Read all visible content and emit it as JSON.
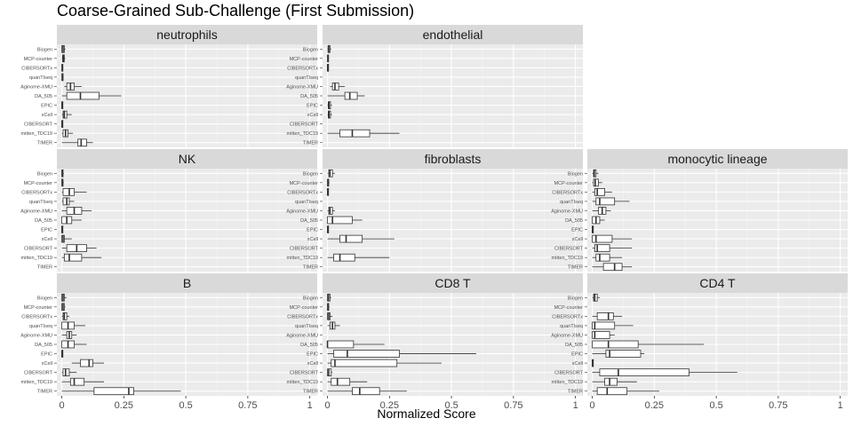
{
  "chart_data": {
    "type": "boxplot",
    "title": "Coarse-Grained Sub-Challenge (First Submission)",
    "xlabel": "Normalized Score",
    "ylabel": "",
    "xlim": [
      -0.02,
      1.03
    ],
    "x_ticks": [
      "0",
      "0.25",
      "0.5",
      "0.75",
      "1"
    ],
    "x_tick_values": [
      0,
      0.25,
      0.5,
      0.75,
      1
    ],
    "methods": [
      "Biogen",
      "MCP-counter",
      "CIBERSORTx",
      "quanTIseq",
      "Aginome-XMU",
      "DA_505",
      "EPIC",
      "xCell",
      "CIBERSORT",
      "mitten_TDC19",
      "TIMER"
    ],
    "colors": {
      "panel_bg": "#ebebeb",
      "grid_major": "#ffffff",
      "grid_minor": "#f3f3f3",
      "strip_bg": "#d9d9d9",
      "box_fill": "#ffffff",
      "box_line": "#333333"
    },
    "panels": [
      {
        "name": "neutrophils",
        "row": 0,
        "col": 0,
        "boxes": [
          [
            0.0,
            0.0,
            0.005,
            0.01,
            0.015
          ],
          [
            0.0,
            0.003,
            0.006,
            0.01,
            0.014
          ],
          [
            0.0,
            0.0,
            0.002,
            0.004,
            0.006
          ],
          [
            0.0,
            0.0,
            0.003,
            0.005,
            0.007
          ],
          [
            0.01,
            0.02,
            0.035,
            0.05,
            0.08
          ],
          [
            0.0,
            0.02,
            0.075,
            0.15,
            0.24
          ],
          [
            0.0,
            0.0,
            0.001,
            0.002,
            0.003
          ],
          [
            0.0,
            0.005,
            0.01,
            0.02,
            0.04
          ],
          [
            0.0,
            0.0,
            0.001,
            0.002,
            0.003
          ],
          [
            0.0,
            0.005,
            0.015,
            0.025,
            0.045
          ],
          [
            0.0,
            0.065,
            0.078,
            0.1,
            0.125
          ]
        ]
      },
      {
        "name": "endothelial",
        "row": 0,
        "col": 1,
        "boxes": [
          [
            0.0,
            0.002,
            0.005,
            0.01,
            0.015
          ],
          [
            0.0,
            0.0,
            0.002,
            0.004,
            0.006
          ],
          [
            0.0,
            0.0,
            0.001,
            0.002,
            0.003
          ],
          null,
          [
            0.01,
            0.02,
            0.03,
            0.045,
            0.07
          ],
          [
            0.0,
            0.07,
            0.09,
            0.12,
            0.15
          ],
          [
            0.0,
            0.003,
            0.006,
            0.012,
            0.018
          ],
          [
            0.0,
            0.003,
            0.006,
            0.012,
            0.018
          ],
          null,
          [
            0.0,
            0.05,
            0.1,
            0.17,
            0.29
          ],
          null
        ]
      },
      {
        "name": "NK",
        "row": 1,
        "col": 0,
        "boxes": [
          [
            0.0,
            0.0,
            0.002,
            0.005,
            0.008
          ],
          [
            0.0,
            0.0,
            0.002,
            0.005,
            0.008
          ],
          [
            0.0,
            0.005,
            0.03,
            0.05,
            0.1
          ],
          [
            0.0,
            0.005,
            0.02,
            0.03,
            0.05
          ],
          [
            0.0,
            0.02,
            0.05,
            0.08,
            0.12
          ],
          [
            0.0,
            0.0,
            0.02,
            0.04,
            0.08
          ],
          [
            0.0,
            0.0,
            0.001,
            0.002,
            0.003
          ],
          [
            0.0,
            0.0,
            0.005,
            0.01,
            0.04
          ],
          [
            0.0,
            0.02,
            0.06,
            0.1,
            0.14
          ],
          [
            0.0,
            0.01,
            0.03,
            0.08,
            0.16
          ],
          null
        ]
      },
      {
        "name": "fibroblasts",
        "row": 1,
        "col": 1,
        "boxes": [
          [
            0.0,
            0.005,
            0.01,
            0.02,
            0.03
          ],
          [
            0.0,
            0.0,
            0.002,
            0.005,
            0.008
          ],
          [
            0.0,
            0.0,
            0.001,
            0.002,
            0.003
          ],
          null,
          [
            0.0,
            0.005,
            0.01,
            0.02,
            0.03
          ],
          [
            0.0,
            0.0,
            0.02,
            0.1,
            0.14
          ],
          [
            0.0,
            0.0,
            0.001,
            0.002,
            0.003
          ],
          [
            0.0,
            0.05,
            0.075,
            0.14,
            0.27
          ],
          null,
          [
            0.0,
            0.025,
            0.05,
            0.11,
            0.25
          ],
          null
        ]
      },
      {
        "name": "monocytic lineage",
        "row": 1,
        "col": 2,
        "boxes": [
          [
            0.0,
            0.005,
            0.008,
            0.015,
            0.025
          ],
          [
            0.0,
            0.005,
            0.012,
            0.025,
            0.04
          ],
          [
            0.0,
            0.01,
            0.02,
            0.05,
            0.08
          ],
          [
            0.0,
            0.015,
            0.03,
            0.09,
            0.15
          ],
          [
            0.0,
            0.025,
            0.04,
            0.055,
            0.075
          ],
          [
            0.0,
            0.0,
            0.015,
            0.03,
            0.05
          ],
          [
            0.0,
            0.0,
            0.001,
            0.002,
            0.003
          ],
          [
            0.0,
            0.0,
            0.015,
            0.08,
            0.16
          ],
          [
            0.0,
            0.01,
            0.02,
            0.07,
            0.16
          ],
          [
            0.0,
            0.015,
            0.03,
            0.07,
            0.12
          ],
          [
            0.0,
            0.045,
            0.09,
            0.12,
            0.16
          ]
        ]
      },
      {
        "name": "B",
        "row": 2,
        "col": 0,
        "boxes": [
          [
            0.0,
            0.0,
            0.005,
            0.01,
            0.02
          ],
          [
            0.0,
            0.0,
            0.005,
            0.01,
            0.014
          ],
          [
            0.0,
            0.005,
            0.01,
            0.02,
            0.03
          ],
          [
            0.0,
            0.0,
            0.025,
            0.05,
            0.095
          ],
          [
            0.0,
            0.02,
            0.03,
            0.04,
            0.06
          ],
          [
            0.0,
            0.0,
            0.025,
            0.05,
            0.1
          ],
          [
            0.0,
            0.0,
            0.001,
            0.002,
            0.003
          ],
          [
            0.04,
            0.075,
            0.11,
            0.125,
            0.17
          ],
          [
            0.0,
            0.005,
            0.015,
            0.03,
            0.06
          ],
          [
            0.0,
            0.035,
            0.05,
            0.09,
            0.17
          ],
          [
            0.0,
            0.13,
            0.27,
            0.29,
            0.48
          ]
        ]
      },
      {
        "name": "CD8 T",
        "row": 2,
        "col": 1,
        "boxes": [
          [
            0.0,
            0.0,
            0.004,
            0.01,
            0.015
          ],
          [
            0.0,
            0.0,
            0.002,
            0.005,
            0.008
          ],
          [
            0.0,
            0.0,
            0.005,
            0.01,
            0.02
          ],
          [
            0.0,
            0.01,
            0.02,
            0.03,
            0.05
          ],
          null,
          [
            0.0,
            0.0,
            0.0,
            0.105,
            0.23
          ],
          [
            0.0,
            0.025,
            0.08,
            0.29,
            0.6
          ],
          [
            0.0,
            0.015,
            0.03,
            0.28,
            0.46
          ],
          [
            0.0,
            0.0,
            0.005,
            0.015,
            0.02
          ],
          [
            0.0,
            0.015,
            0.04,
            0.09,
            0.16
          ],
          [
            0.0,
            0.1,
            0.13,
            0.21,
            0.32
          ]
        ]
      },
      {
        "name": "CD4 T",
        "row": 2,
        "col": 2,
        "boxes": [
          [
            0.0,
            0.005,
            0.01,
            0.02,
            0.03
          ],
          null,
          [
            0.0,
            0.02,
            0.065,
            0.085,
            0.12
          ],
          [
            0.0,
            0.0,
            0.01,
            0.09,
            0.165
          ],
          [
            0.0,
            0.0,
            0.01,
            0.07,
            0.09
          ],
          [
            0.0,
            0.0,
            0.065,
            0.185,
            0.45
          ],
          [
            0.0,
            0.055,
            0.07,
            0.195,
            0.21
          ],
          [
            0.0,
            0.0,
            0.001,
            0.002,
            0.003
          ],
          [
            0.0,
            0.03,
            0.105,
            0.39,
            0.585
          ],
          [
            0.0,
            0.05,
            0.07,
            0.1,
            0.18
          ],
          [
            0.0,
            0.02,
            0.06,
            0.14,
            0.27
          ]
        ]
      }
    ]
  }
}
